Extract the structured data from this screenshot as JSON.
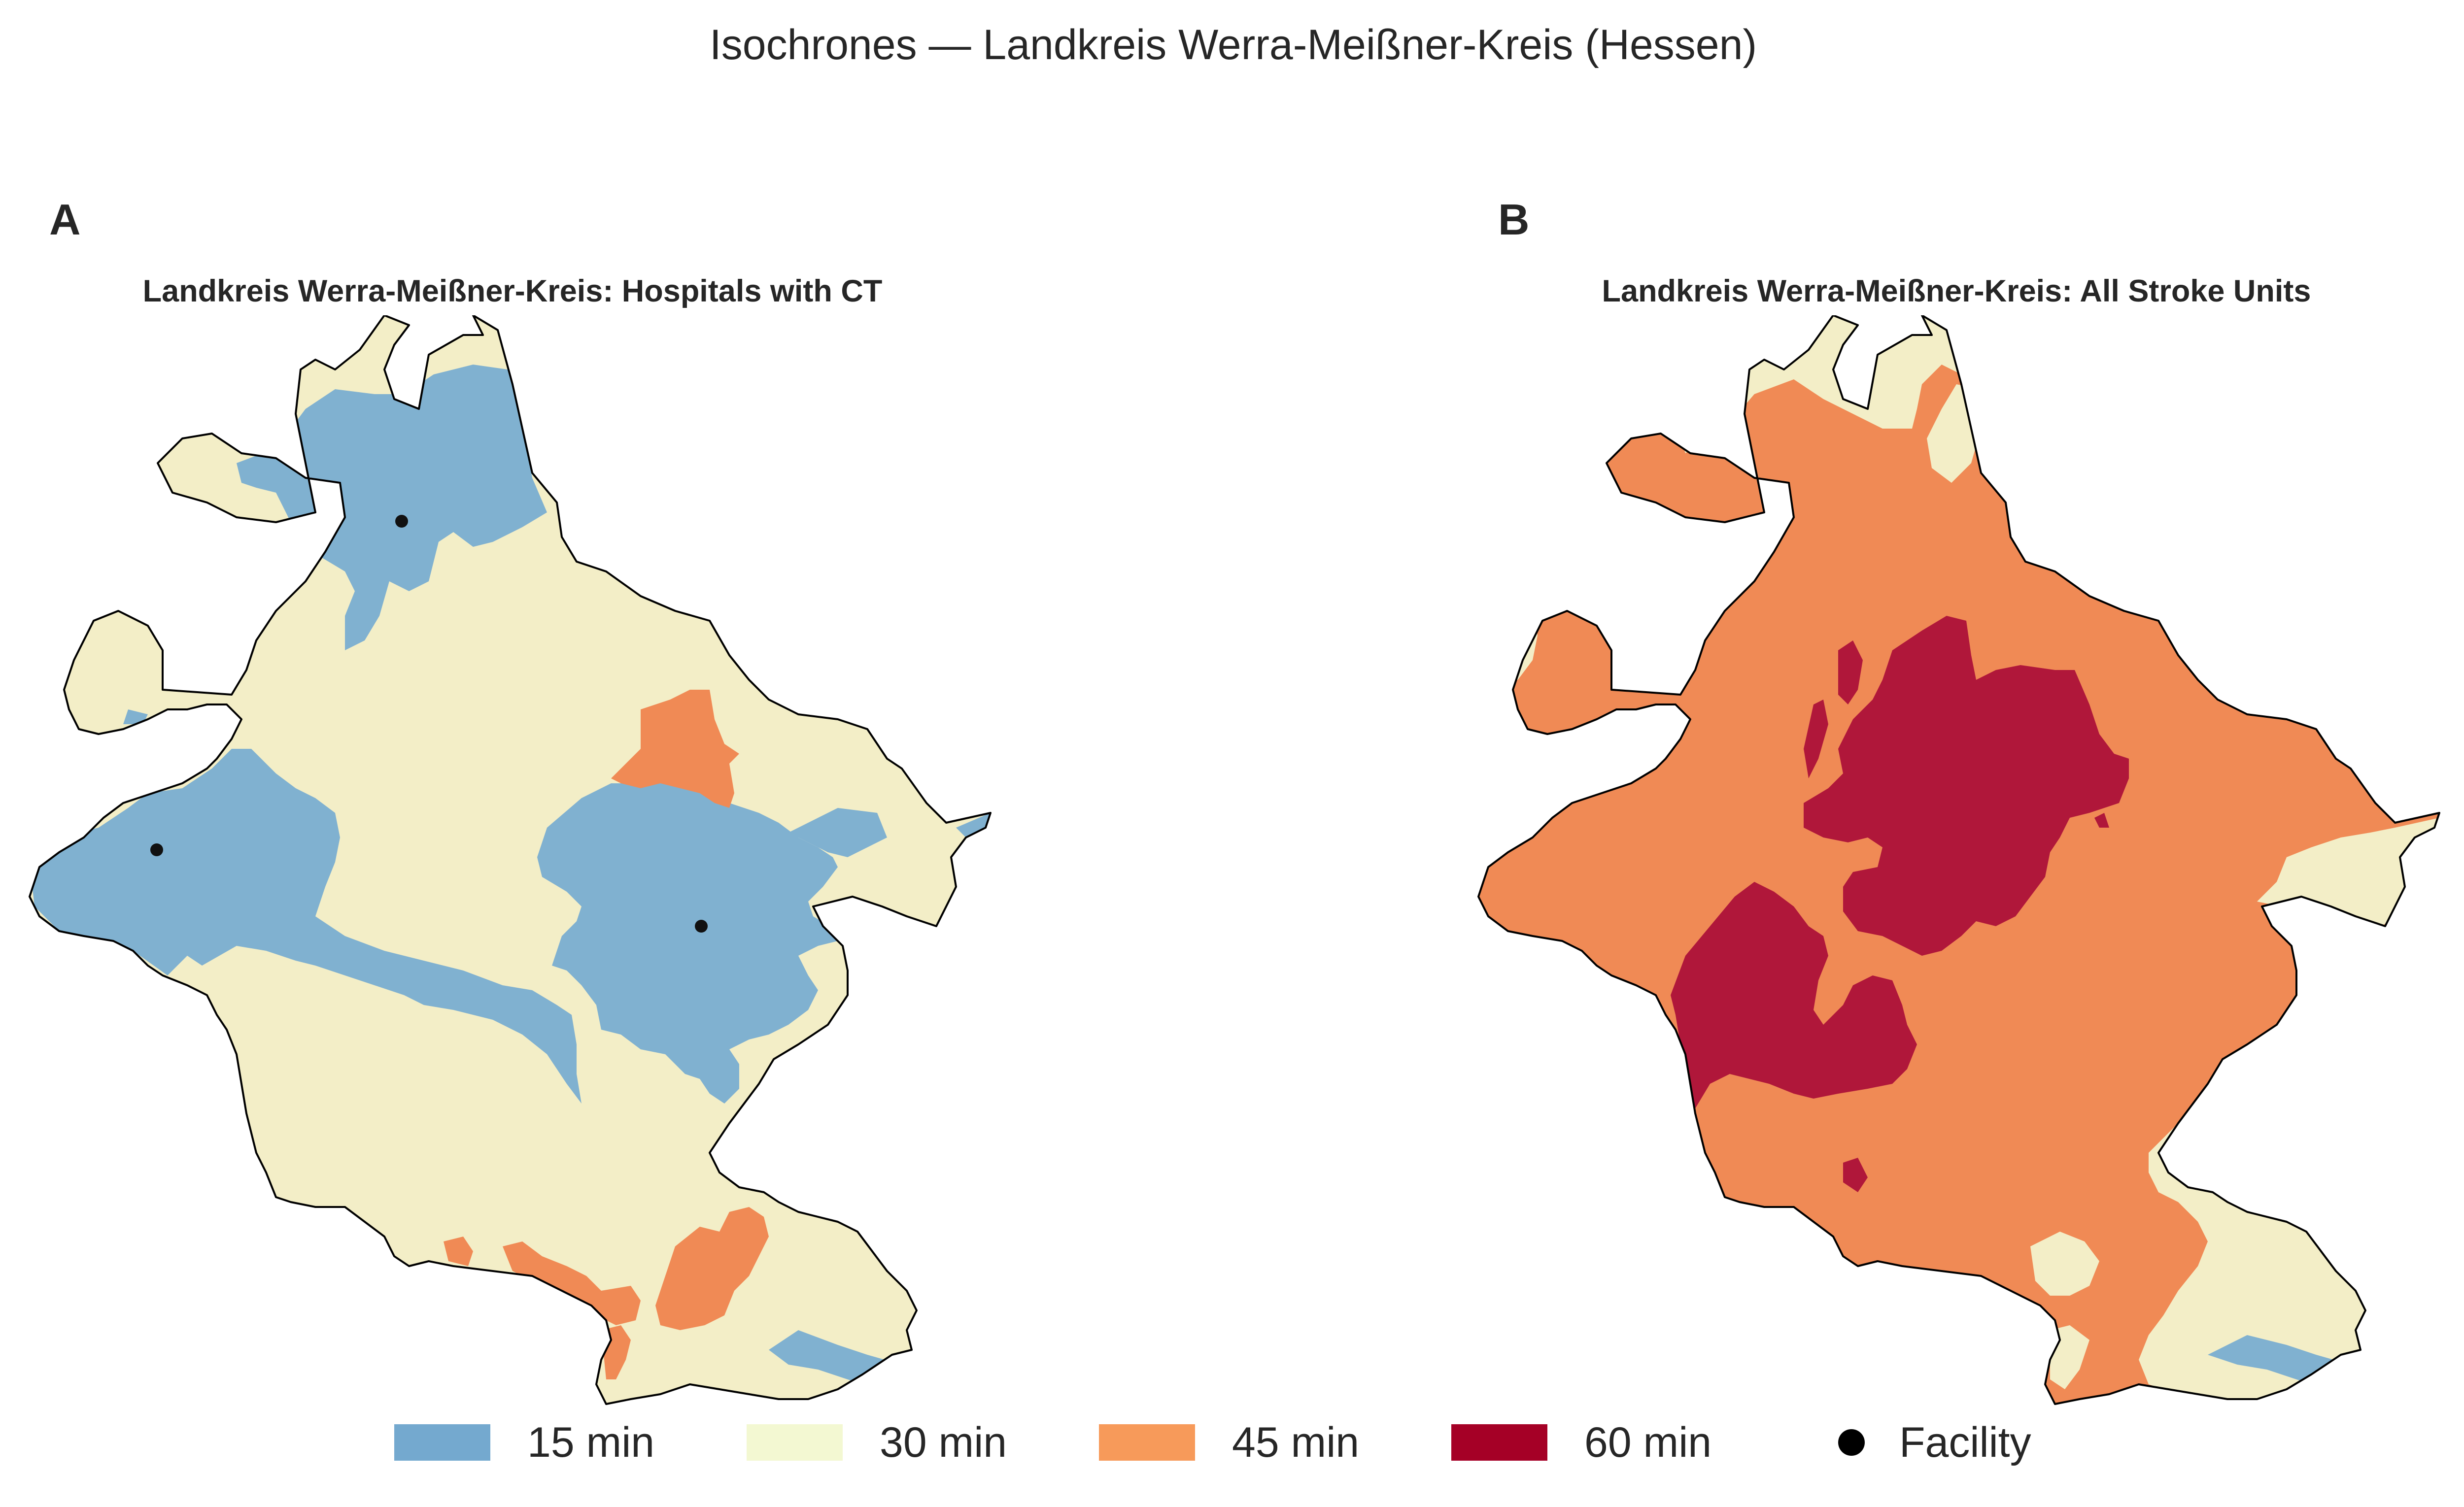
{
  "figure": {
    "title": "Isochrones — Landkreis Werra-Meißner-Kreis (Hessen)"
  },
  "panels": [
    {
      "letter": "A",
      "title": "Landkreis Werra-Meißner-Kreis: Hospitals with CT",
      "facilities_shown": 3
    },
    {
      "letter": "B",
      "title": "Landkreis Werra-Meißner-Kreis: All Stroke Units",
      "facilities_shown": 0
    }
  ],
  "legend": {
    "items": [
      {
        "label": "15 min",
        "color": "#74a9cf"
      },
      {
        "label": "30 min",
        "color": "#f3eec7"
      },
      {
        "label": "45 min",
        "color": "#f79a5a"
      },
      {
        "label": "60 min",
        "color": "#a50026"
      }
    ],
    "facility": {
      "label": "Facility",
      "color": "#000000"
    }
  },
  "colors": {
    "min15": "#80b1d0",
    "min30": "#f3eec7",
    "min45": "#f08a55",
    "min60": "#b0173a",
    "border": "#000000"
  }
}
